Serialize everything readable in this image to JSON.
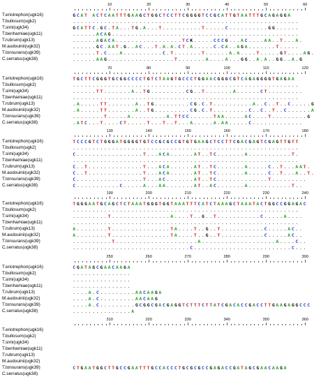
{
  "species": [
    "T.eriotrephon(ugk16)",
    "T.bullosum(ugk2)",
    "T.simi(ugk34)",
    "T.benhamiae(ugk11)",
    "T.rubrum(ugk13)",
    "M.audouinii(ugk32)",
    "T.tonsurans(ugk39)",
    "C.serratus(ugk38)"
  ],
  "colors": {
    "A": "#1f9b1f",
    "C": "#1c3ec9",
    "G": "#111111",
    "T": "#d11a1a"
  },
  "blocks": [
    {
      "ticks": [
        "10",
        "20",
        "30",
        "40",
        "50",
        "60"
      ],
      "rows": [
        "GCAT ACTCAATTTGAAGCTGGCTCCTTCGGGGTCCGCATTGTAATTTGCAGAGGA",
        "..........................................................",
        "GCATTC.GC.TA...TG.A...T..........T.....C..........GG......",
        "......ACAG................................................",
        "......AGACA.................TCK.....CCCG...AC....AA..T...A.",
        "......GC.AAT.G..AC...T.A.A.CT.A.....C.CA..AGA.......T.....",
        "......T.C...A..........C.T.......T......A.A....T.....GT....AG.",
        "......AAG.................T.......A....A...GG..A.A..GG..A.G"
      ]
    },
    {
      "ticks": [
        "70",
        "80",
        "90",
        "100",
        "110",
        "120"
      ],
      "rows": [
        "TGCTTCGGGTGCGGCCCCTGTCTAAGTGCCCTGGAACGGGCGTCAGAGGGGTGAGAA",
        "..........................................................",
        "......TT.......A..TG.........CG..T.......A......CT.........",
        "..........................................................",
        ".A.....TT.......A..TG.........CG.C.T..........A..C..T..C.....G",
        ".A.....TT.......A..TG.........CG.C.T.........C..C..T..C......A",
        "........T.....A.........A.TTCC......TAA.....AC....T.........G",
        ".ATC...T....CT.....T...T..T...A.....A.AA.....C............."
      ]
    },
    {
      "ticks": [
        "130",
        "140",
        "150",
        "160",
        "170",
        "180"
      ],
      "rows": [
        "TCCCGTCTGGGATGGGGTGTCCGCGCCGTGTGAAGCTCCTTCGACGAGTCGAGTTGTT",
        "..........................................................",
        "C.................T...ACA......AT..TC.......A...........T.",
        "..........................................................",
        "C..T..............T...ACA......AT..TC.......A.....C..T...AAT.",
        "C..T..............T...ACA......AT..TC.......A.....C..T...A..T.",
        "C.................T...AC.......AT..TC.............T.........",
        "C...........C.....A...AA.......AT..AC.......A...........T.."
      ]
    },
    {
      "ticks": [
        "190",
        "200",
        "210",
        "220",
        "230",
        "240"
      ],
      "rows": [
        "TGGGAATGCAGCTCTAAATGGGTGGTAAATTTCATCTAAAGCTAAATACTGGCCGGAGAC",
        "..........................................................",
        ".........T...............A....T..G..T...........C.....A....",
        "..........................................................",
        "A........T...............TA....T..G..T...........C.....AC..",
        "A........T...............TA....T..G..T...........C.....AC..",
        "..........T.....................A...................A....C..",
        "..............................C.........................C..."
      ]
    },
    {
      "ticks": [
        "250",
        "260",
        "270",
        "280",
        "290",
        "300"
      ],
      "rows": [
        "CGATAGCGAACAAGA",
        "...............",
        "...............",
        "...............",
        "....A.C.........AACAAGA",
        "....A.C.........AACAAG",
        "....A.C.........GCGGCGACGAGGTCTTTCTTATCGACACCGACCTTGAAGAGGCCC",
        "...............A"
      ]
    },
    {
      "ticks": [
        "310",
        "320",
        "330",
        "340",
        "350",
        "360"
      ],
      "rows": [
        "",
        "",
        "",
        "",
        "",
        "",
        "CTGAATGGCTTGCCGAATTTGCCACCCTGCGCGCCGAGACCGATAGCGAACAAGA",
        ""
      ]
    }
  ]
}
